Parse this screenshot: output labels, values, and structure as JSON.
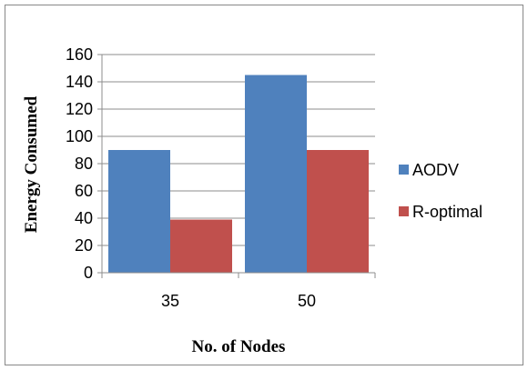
{
  "chart_data": {
    "type": "bar",
    "categories": [
      "35",
      "50"
    ],
    "series": [
      {
        "name": "AODV",
        "values": [
          90,
          145
        ],
        "color": "#4f81bd"
      },
      {
        "name": "R-optimal",
        "values": [
          39,
          90
        ],
        "color": "#c0504d"
      }
    ],
    "xlabel": "No. of  Nodes",
    "ylabel": "Energy Consumed",
    "ylim": [
      0,
      160
    ],
    "yticks": [
      "0",
      "20",
      "40",
      "60",
      "80",
      "100",
      "120",
      "140",
      "160"
    ],
    "grid": true,
    "legend_position": "right"
  }
}
